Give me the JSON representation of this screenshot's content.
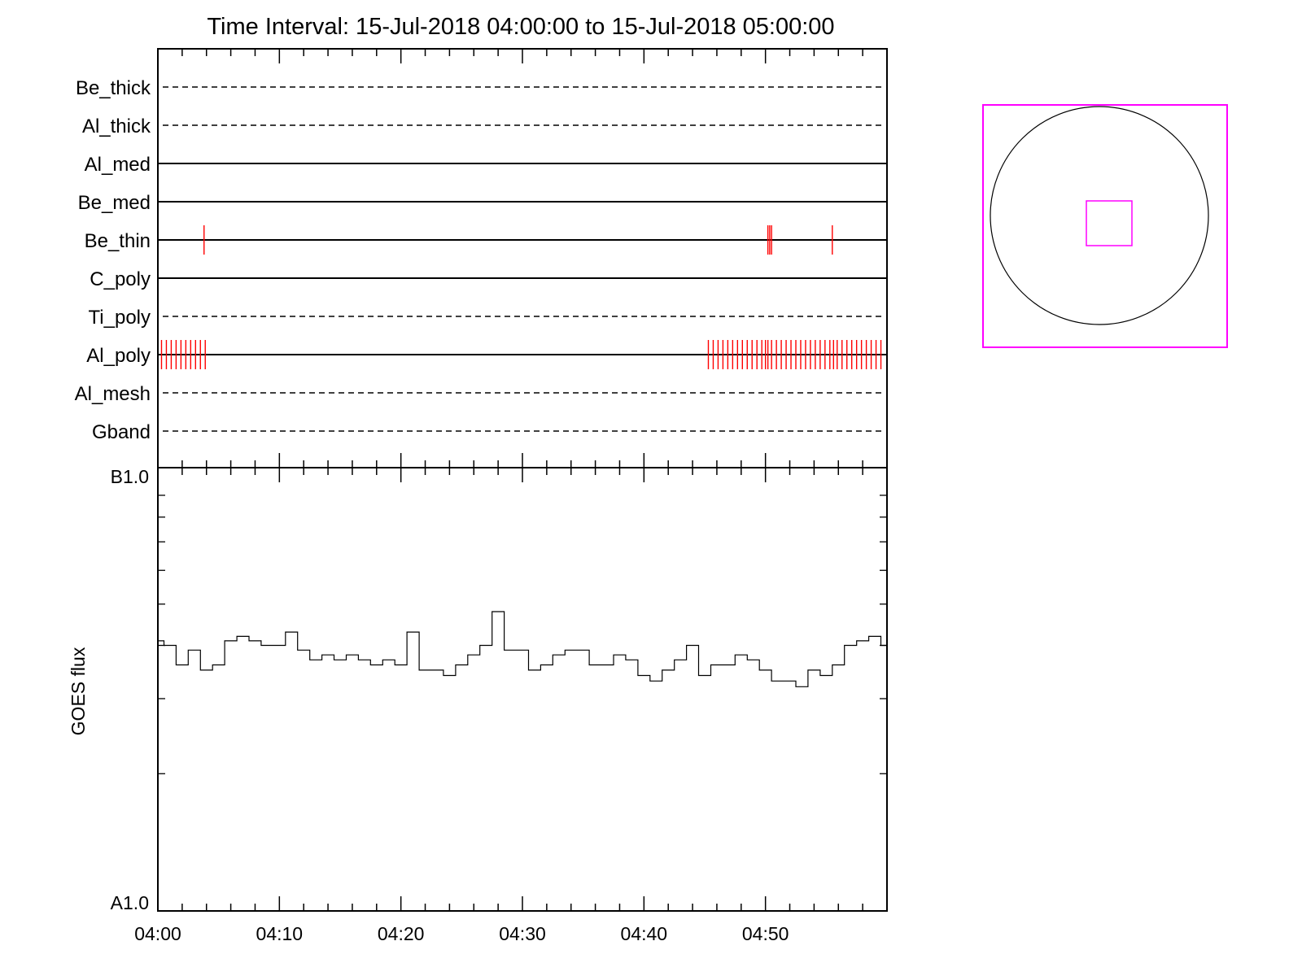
{
  "chart_data": [
    {
      "type": "timeline",
      "title": "Time Interval: 15-Jul-2018 04:00:00 to 15-Jul-2018 05:00:00",
      "x_unit": "minutes after 04:00",
      "xlim": [
        0,
        60
      ],
      "rows": [
        {
          "label": "Be_thick",
          "style": "dashed",
          "events": []
        },
        {
          "label": "Al_thick",
          "style": "dashed",
          "events": []
        },
        {
          "label": "Al_med",
          "style": "solid",
          "events": []
        },
        {
          "label": "Be_med",
          "style": "solid",
          "events": []
        },
        {
          "label": "Be_thin",
          "style": "solid",
          "events": [
            3.8,
            50.2,
            50.35,
            50.5,
            55.5
          ]
        },
        {
          "label": "C_poly",
          "style": "solid",
          "events": []
        },
        {
          "label": "Ti_poly",
          "style": "dashed",
          "events": []
        },
        {
          "label": "Al_poly",
          "style": "solid",
          "events": [
            0.3,
            0.7,
            1.1,
            1.5,
            1.9,
            2.3,
            2.7,
            3.1,
            3.5,
            3.9,
            45.3,
            45.7,
            46.1,
            46.5,
            46.9,
            47.3,
            47.7,
            48.1,
            48.5,
            48.9,
            49.3,
            49.7,
            50.0,
            50.2,
            50.5,
            50.9,
            51.3,
            51.7,
            52.1,
            52.5,
            52.9,
            53.3,
            53.7,
            54.1,
            54.5,
            54.9,
            55.3,
            55.6,
            55.9,
            56.3,
            56.7,
            57.1,
            57.5,
            57.9,
            58.3,
            58.7,
            59.1,
            59.5
          ]
        },
        {
          "label": "Al_mesh",
          "style": "dashed",
          "events": []
        },
        {
          "label": "Gband",
          "style": "dashed",
          "events": []
        }
      ]
    },
    {
      "type": "line",
      "ylabel": "GOES flux",
      "y_scale": "log",
      "y_tick_labels": [
        "B1.0",
        "A1.0"
      ],
      "ylim": [
        1e-08,
        1e-07
      ],
      "x_tick_labels": [
        "04:00",
        "04:10",
        "04:20",
        "04:30",
        "04:40",
        "04:50"
      ],
      "xlim": [
        0,
        60
      ],
      "series": [
        {
          "x": [
            0,
            1,
            2,
            3,
            4,
            5,
            6,
            7,
            8,
            9,
            10,
            11,
            12,
            13,
            14,
            15,
            16,
            17,
            18,
            19,
            20,
            21,
            22,
            23,
            24,
            25,
            26,
            27,
            28,
            29,
            30,
            31,
            32,
            33,
            34,
            35,
            36,
            37,
            38,
            39,
            40,
            41,
            42,
            43,
            44,
            45,
            46,
            47,
            48,
            49,
            50,
            51,
            52,
            53,
            54,
            55,
            56,
            57,
            58,
            59,
            60
          ],
          "y": [
            4.1e-08,
            4e-08,
            3.6e-08,
            3.9e-08,
            3.5e-08,
            3.6e-08,
            4.1e-08,
            4.2e-08,
            4.1e-08,
            4e-08,
            4e-08,
            4.3e-08,
            3.9e-08,
            3.7e-08,
            3.8e-08,
            3.7e-08,
            3.8e-08,
            3.7e-08,
            3.6e-08,
            3.7e-08,
            3.6e-08,
            4.3e-08,
            3.5e-08,
            3.5e-08,
            3.4e-08,
            3.6e-08,
            3.8e-08,
            4e-08,
            4.8e-08,
            3.9e-08,
            3.9e-08,
            3.5e-08,
            3.6e-08,
            3.8e-08,
            3.9e-08,
            3.9e-08,
            3.6e-08,
            3.6e-08,
            3.8e-08,
            3.7e-08,
            3.4e-08,
            3.3e-08,
            3.5e-08,
            3.7e-08,
            4e-08,
            3.4e-08,
            3.6e-08,
            3.6e-08,
            3.8e-08,
            3.7e-08,
            3.5e-08,
            3.3e-08,
            3.3e-08,
            3.2e-08,
            3.5e-08,
            3.4e-08,
            3.6e-08,
            4e-08,
            4.1e-08,
            4.2e-08,
            4e-08
          ]
        }
      ]
    }
  ],
  "colors": {
    "event": "#ff0000",
    "fov": "#ff00ff",
    "axis": "#000000"
  }
}
